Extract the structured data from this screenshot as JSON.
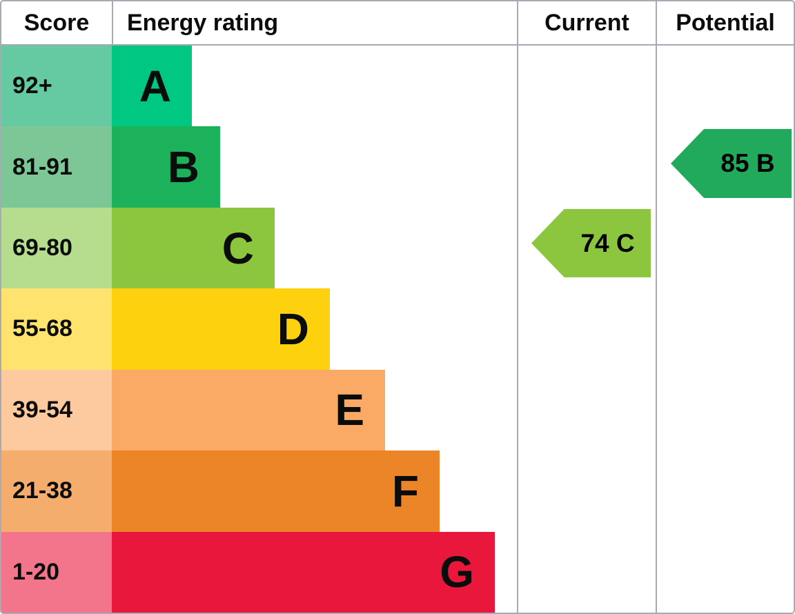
{
  "header": {
    "score": "Score",
    "energy_rating": "Energy rating",
    "current": "Current",
    "potential": "Potential"
  },
  "chart_data": {
    "type": "bar",
    "variant": "epc-energy-rating-chart",
    "columns": [
      "Score",
      "Energy rating",
      "Current",
      "Potential"
    ],
    "bands": [
      {
        "score": "92+",
        "rating": "A",
        "band_color": "#00c781",
        "score_color": "#65c9a1"
      },
      {
        "score": "81-91",
        "rating": "B",
        "band_color": "#1cb25b",
        "score_color": "#7cc795"
      },
      {
        "score": "69-80",
        "rating": "C",
        "band_color": "#8cc63f",
        "score_color": "#b6dc8d"
      },
      {
        "score": "55-68",
        "rating": "D",
        "band_color": "#fdd10e",
        "score_color": "#fee36f"
      },
      {
        "score": "39-54",
        "rating": "E",
        "band_color": "#fbaa66",
        "score_color": "#fdc99e"
      },
      {
        "score": "21-38",
        "rating": "F",
        "band_color": "#ec8428",
        "score_color": "#f4ad6d"
      },
      {
        "score": "1-20",
        "rating": "G",
        "band_color": "#e9173c",
        "score_color": "#f2758b"
      }
    ],
    "current": {
      "value": 74,
      "rating": "C",
      "label": "74 C",
      "arrow_color": "#8cc63f"
    },
    "potential": {
      "value": 85,
      "rating": "B",
      "label": "85 B",
      "arrow_color": "#22aa5c"
    }
  },
  "colors": {
    "border": "#a6aab2"
  }
}
